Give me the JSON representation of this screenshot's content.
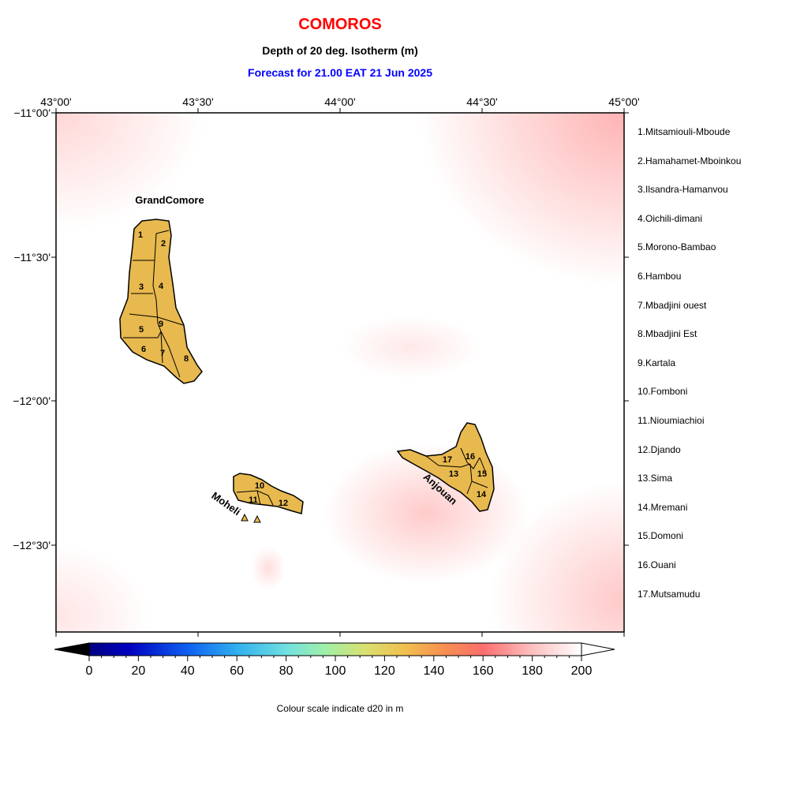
{
  "title": "COMOROS",
  "subtitle": "Depth of 20 deg. Isotherm (m)",
  "forecast": "Forecast for  21.00 EAT 21 Jun 2025",
  "lon_labels": [
    "43°00'",
    "43°30'",
    "44°00'",
    "44°30'",
    "45°00'"
  ],
  "lat_labels": [
    "−11°00'",
    "−11°30'",
    "−12°00'",
    "−12°30'"
  ],
  "islands": {
    "grand_comore": "GrandComore",
    "moheli": "Moheli",
    "anjouan": "Anjouan"
  },
  "region_numbers": [
    "1",
    "2",
    "3",
    "4",
    "5",
    "6",
    "7",
    "8",
    "9",
    "10",
    "11",
    "12",
    "13",
    "14",
    "15",
    "16",
    "17"
  ],
  "legend": [
    "1.Mitsamiouli-Mboude",
    "2.Hamahamet-Mboinkou",
    "3.Ilsandra-Hamanvou",
    "4.Oichili-dimani",
    "5.Morono-Bambao",
    "6.Hambou",
    "7.Mbadjini ouest",
    "8.Mbadjini Est",
    "9.Kartala",
    "10.Fomboni",
    "11.Nioumiachioi",
    "12.Djando",
    "13.Sima",
    "14.Mremani",
    "15.Domoni",
    "16.Ouani",
    "17.Mutsamudu"
  ],
  "colorbar": {
    "ticks": [
      "0",
      "20",
      "40",
      "60",
      "80",
      "100",
      "120",
      "140",
      "160",
      "180",
      "200"
    ],
    "caption": "Colour scale indicate d20 in m"
  },
  "colors": {
    "title": "#ff0000",
    "forecast": "#0000ff",
    "land": "#e8b94e"
  }
}
